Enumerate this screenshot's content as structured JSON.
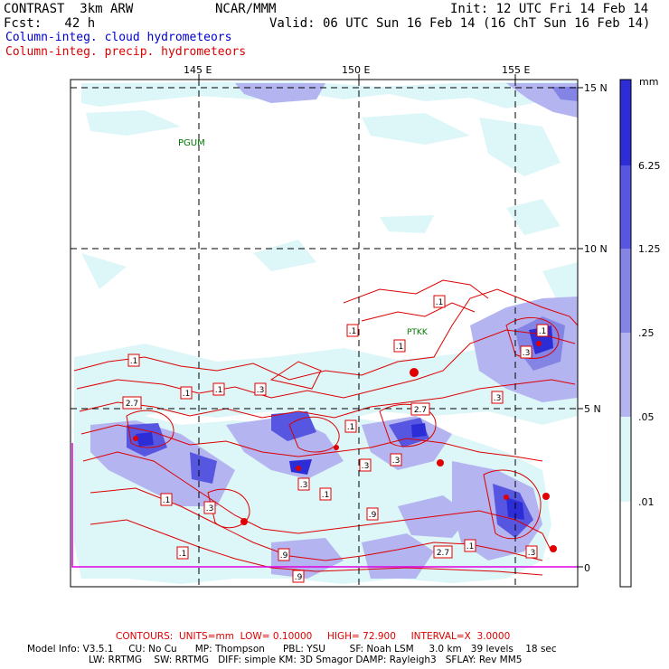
{
  "header": {
    "title": "CONTRAST  3km ARW",
    "org": "NCAR/MMM",
    "init": "Init: 12 UTC Fri 14 Feb 14",
    "fcst": "Fcst:   42 h",
    "valid": "Valid: 06 UTC Sun 16 Feb 14 (16 ChT Sun 16 Feb 14)"
  },
  "legend": {
    "cloud": "Column-integ. cloud hydrometeors",
    "precip": "Column-integ. precip. hydrometeors"
  },
  "map": {
    "lon_labels": [
      "145 E",
      "150 E",
      "155 E"
    ],
    "lat_labels": [
      "15 N",
      "10 N",
      "5 N",
      "0"
    ],
    "stations": [
      {
        "name": "PGUM",
        "lon": 144.8,
        "lat": 13.5
      },
      {
        "name": "PTKK",
        "lon": 151.8,
        "lat": 7.5
      }
    ],
    "contour_labels": [
      ".1",
      ".1",
      ".1",
      ".1",
      "2.7",
      ".1",
      ".1",
      ".3",
      "2.7",
      ".3",
      ".3",
      ".3",
      ".1",
      ".3",
      ".9",
      ".1",
      ".1",
      ".9",
      ".3",
      "2.7",
      ".1",
      ".9",
      ".3",
      ".1",
      ".1",
      ".3"
    ]
  },
  "colorbar": {
    "unit": "mm",
    "levels": [
      "6.25",
      "1.25",
      ".25",
      ".05",
      ".01"
    ],
    "colors": [
      "#2d2dd8",
      "#5656e0",
      "#8484e4",
      "#b4b4f0",
      "#ddf6f8",
      "#ffffff"
    ]
  },
  "footer": {
    "contours": "CONTOURS:  UNITS=mm  LOW= 0.10000     HIGH= 72.900     INTERVAL=X  3.0000",
    "model1": "Model Info: V3.5.1     CU: No Cu      MP: Thompson      PBL: YSU        SF: Noah LSM     3.0 km   39 levels    18 sec",
    "model2": "LW: RRTMG    SW: RRTMG   DIFF: simple KM: 3D Smagor DAMP: Rayleigh3   SFLAY: Rev MM5"
  },
  "colors": {
    "cloud_text": "#0000cc",
    "precip_text": "#dd0000",
    "contour": "#dd0000",
    "grid": "#000000",
    "station": "#007700"
  }
}
